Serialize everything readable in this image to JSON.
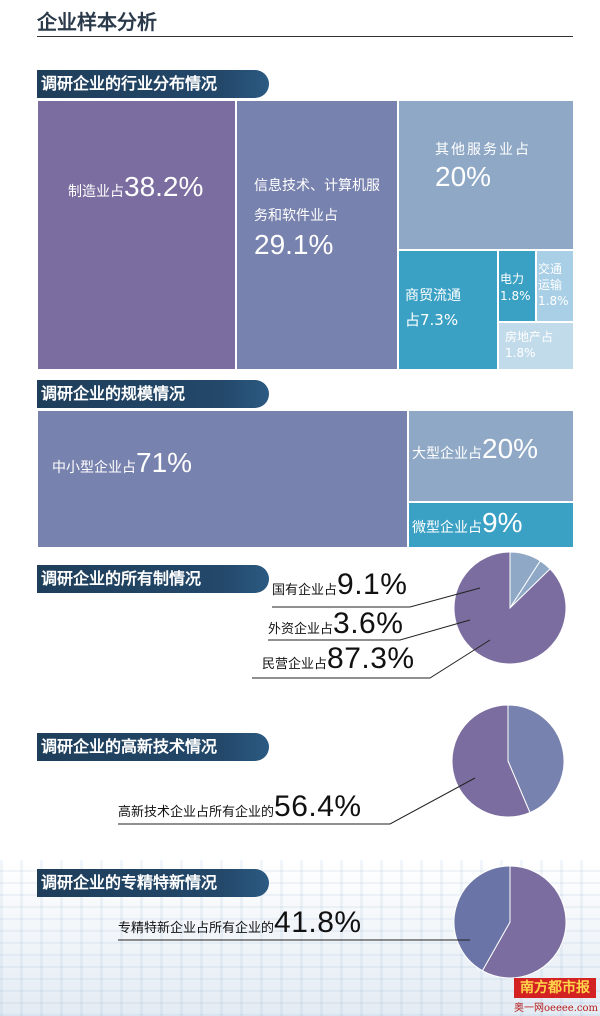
{
  "page_title": "企业样本分析",
  "colors": {
    "dark_purple": "#7b6d9f",
    "mid_purple": "#7882ae",
    "steel_blue": "#8fa8c6",
    "teal": "#3aa0c4",
    "light_blue": "#a9cfe6",
    "pale_blue": "#c2dbea",
    "banner": "#1f3e5a"
  },
  "sections": {
    "industry": {
      "title": "调研企业的行业分布情况"
    },
    "scale": {
      "title": "调研企业的规模情况"
    },
    "ownership": {
      "title": "调研企业的所有制情况"
    },
    "hightech": {
      "title": "调研企业的高新技术情况"
    },
    "specialized": {
      "title": "调研企业的专精特新情况"
    }
  },
  "chart_data": [
    {
      "type": "treemap",
      "title": "调研企业的行业分布情况",
      "items": [
        {
          "label": "制造业占",
          "value": 38.2,
          "display": "38.2%"
        },
        {
          "label": "信息技术、计算机服务和软件业占",
          "line1": "信息技术、计算机服",
          "line2": "务和软件业占",
          "value": 29.1,
          "display": "29.1%"
        },
        {
          "label": "其他服务业占",
          "value": 20,
          "display": "20%"
        },
        {
          "label": "商贸流通占",
          "line1": "商贸流通",
          "line2": "占7.3%",
          "value": 7.3,
          "display": "7.3%"
        },
        {
          "label": "电力",
          "value": 1.8,
          "display": "1.8%"
        },
        {
          "label": "交通运输",
          "line1": "交通",
          "line2": "运输",
          "value": 1.8,
          "display": "1.8%"
        },
        {
          "label": "房地产占",
          "value": 1.8,
          "display": "1.8%"
        }
      ]
    },
    {
      "type": "treemap",
      "title": "调研企业的规模情况",
      "items": [
        {
          "label": "中小型企业占",
          "value": 71,
          "display": "71%"
        },
        {
          "label": "大型企业占",
          "value": 20,
          "display": "20%"
        },
        {
          "label": "微型企业占",
          "value": 9,
          "display": "9%"
        }
      ]
    },
    {
      "type": "pie",
      "title": "调研企业的所有制情况",
      "slices": [
        {
          "label": "国有企业占",
          "value": 9.1,
          "display": "9.1%",
          "color": "#8fa8c6"
        },
        {
          "label": "外资企业占",
          "value": 3.6,
          "display": "3.6%",
          "color": "#8fa8c6"
        },
        {
          "label": "民营企业占",
          "value": 87.3,
          "display": "87.3%",
          "color": "#7b6d9f"
        }
      ]
    },
    {
      "type": "pie",
      "title": "调研企业的高新技术情况",
      "slices": [
        {
          "label": "高新技术企业占所有企业的",
          "value": 56.4,
          "display": "56.4%",
          "color": "#7b6d9f"
        },
        {
          "label": "",
          "value": 43.6,
          "display": "",
          "color": "#7882ae"
        }
      ]
    },
    {
      "type": "pie",
      "title": "调研企业的专精特新情况",
      "slices": [
        {
          "label": "专精特新企业占所有企业的",
          "value": 41.8,
          "display": "41.8%",
          "color": "#6a74a6"
        },
        {
          "label": "",
          "value": 58.2,
          "display": "",
          "color": "#7b6d9f"
        }
      ]
    }
  ],
  "logo": {
    "name": "南方都市报",
    "sub": "奥一网oeeee.com"
  }
}
